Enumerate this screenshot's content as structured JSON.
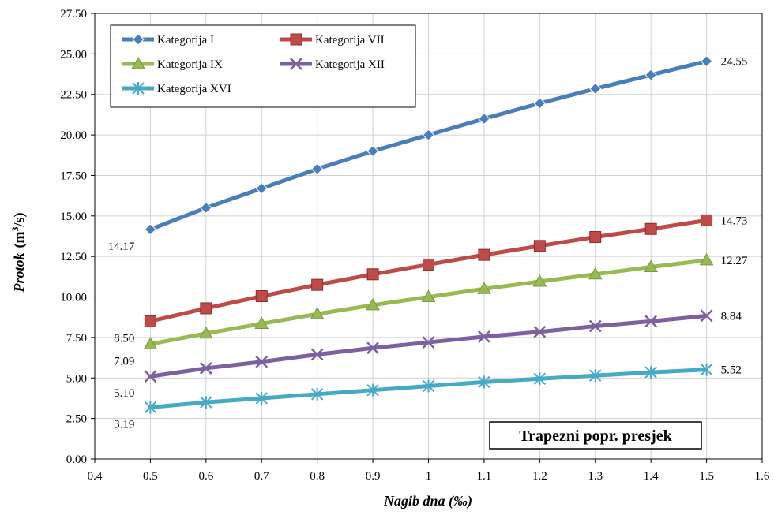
{
  "chart_data": {
    "type": "line",
    "xlabel": "Nagib dna (‰)",
    "ylabel_main": "Protok",
    "ylabel_unit_pre": "(m",
    "ylabel_unit_sup": "3",
    "ylabel_unit_post": "/s)",
    "xlim": [
      0.4,
      1.6
    ],
    "ylim": [
      0,
      27.5
    ],
    "x_ticks": [
      "0.4",
      "0.5",
      "0.6",
      "0.7",
      "0.8",
      "0.9",
      "1",
      "1.1",
      "1.2",
      "1.3",
      "1.4",
      "1.5",
      "1.6"
    ],
    "y_ticks": [
      "0.00",
      "2.50",
      "5.00",
      "7.50",
      "10.00",
      "12.50",
      "15.00",
      "17.50",
      "20.00",
      "22.50",
      "25.00",
      "27.50"
    ],
    "grid": "horizontal and vertical",
    "legend_position": "top-left",
    "annotation": "Trapezni popr. presjek",
    "x": [
      0.5,
      0.6,
      0.7,
      0.8,
      0.9,
      1.0,
      1.1,
      1.2,
      1.3,
      1.4,
      1.5
    ],
    "series": [
      {
        "name": "Kategorija I",
        "color": "#4a7ebb",
        "marker": "diamond",
        "values": [
          14.17,
          15.5,
          16.7,
          17.9,
          19.0,
          20.0,
          21.0,
          21.95,
          22.85,
          23.7,
          24.55
        ],
        "first_label": "14.17",
        "last_label": "24.55"
      },
      {
        "name": "Kategorija VII",
        "color": "#be4b48",
        "marker": "square",
        "values": [
          8.5,
          9.3,
          10.05,
          10.75,
          11.4,
          12.0,
          12.6,
          13.15,
          13.7,
          14.2,
          14.73
        ],
        "first_label": "8.50",
        "last_label": "14.73"
      },
      {
        "name": "Kategorija IX",
        "color": "#98b954",
        "marker": "triangle",
        "values": [
          7.09,
          7.75,
          8.35,
          8.95,
          9.5,
          10.0,
          10.5,
          10.95,
          11.4,
          11.85,
          12.27
        ],
        "first_label": "7.09",
        "last_label": "12.27"
      },
      {
        "name": "Kategorija XII",
        "color": "#7d60a0",
        "marker": "x",
        "values": [
          5.1,
          5.6,
          6.0,
          6.45,
          6.85,
          7.2,
          7.55,
          7.85,
          8.2,
          8.5,
          8.84
        ],
        "first_label": "5.10",
        "last_label": "8.84"
      },
      {
        "name": "Kategorija XVI",
        "color": "#46aac5",
        "marker": "star",
        "values": [
          3.19,
          3.5,
          3.75,
          4.0,
          4.25,
          4.5,
          4.75,
          4.95,
          5.15,
          5.35,
          5.52
        ],
        "first_label": "3.19",
        "last_label": "5.52"
      }
    ]
  }
}
